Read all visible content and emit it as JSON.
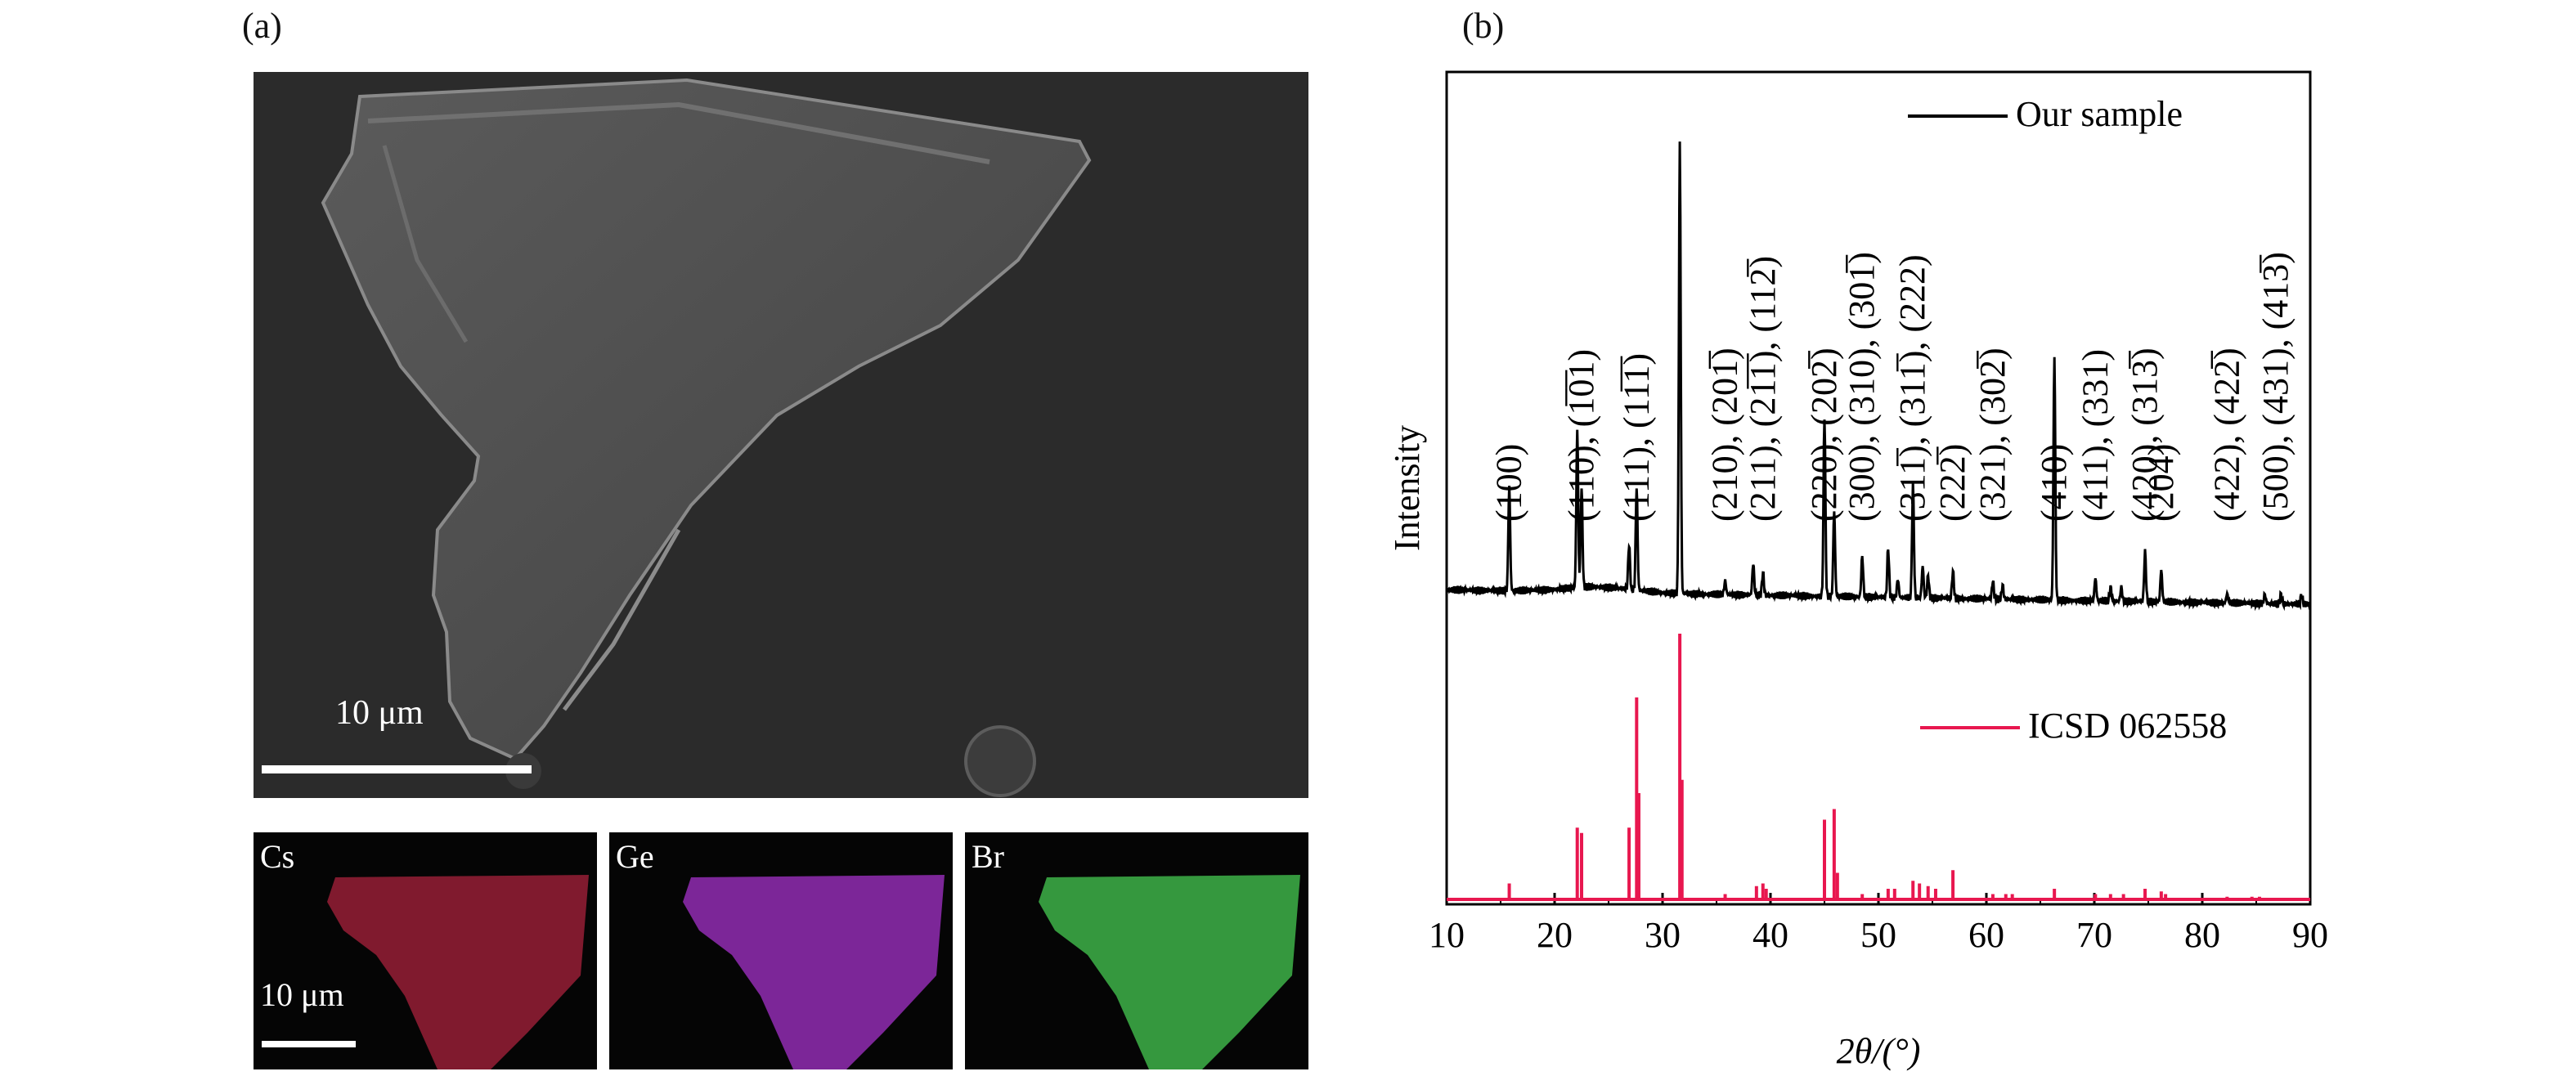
{
  "panels": {
    "a_label": "(a)",
    "b_label": "(b)"
  },
  "sem": {
    "scale_main": "10 μm",
    "scale_map": "10 μm",
    "maps": [
      {
        "element": "Cs",
        "color": "#b0243f"
      },
      {
        "element": "Ge",
        "color": "#a337c6"
      },
      {
        "element": "Br",
        "color": "#3fb648"
      }
    ]
  },
  "chart_data": {
    "type": "line",
    "xlabel": "2θ/(°)",
    "ylabel": "Intensity",
    "xlim": [
      10,
      90
    ],
    "xticks": [
      10,
      20,
      30,
      40,
      50,
      60,
      70,
      80,
      90
    ],
    "legend": [
      {
        "name": "Our sample",
        "color": "#000000",
        "placement": "top"
      },
      {
        "name": "ICSD 062558",
        "color": "#e8174f",
        "placement": "middle"
      }
    ],
    "series": [
      {
        "name": "Our sample",
        "color": "#000000",
        "baseline": 0.07,
        "peaks": [
          {
            "x": 15.8,
            "h": 0.23
          },
          {
            "x": 22.1,
            "h": 0.35
          },
          {
            "x": 22.5,
            "h": 0.22
          },
          {
            "x": 26.9,
            "h": 0.1
          },
          {
            "x": 27.6,
            "h": 0.23
          },
          {
            "x": 31.6,
            "h": 1.0
          },
          {
            "x": 35.8,
            "h": 0.03
          },
          {
            "x": 38.4,
            "h": 0.07
          },
          {
            "x": 39.3,
            "h": 0.05
          },
          {
            "x": 45.0,
            "h": 0.4
          },
          {
            "x": 45.9,
            "h": 0.19
          },
          {
            "x": 48.5,
            "h": 0.09
          },
          {
            "x": 50.9,
            "h": 0.11
          },
          {
            "x": 51.8,
            "h": 0.04
          },
          {
            "x": 53.2,
            "h": 0.25
          },
          {
            "x": 54.1,
            "h": 0.07
          },
          {
            "x": 54.6,
            "h": 0.05
          },
          {
            "x": 56.9,
            "h": 0.06
          },
          {
            "x": 60.6,
            "h": 0.04
          },
          {
            "x": 61.5,
            "h": 0.03
          },
          {
            "x": 66.3,
            "h": 0.54
          },
          {
            "x": 70.1,
            "h": 0.05
          },
          {
            "x": 71.5,
            "h": 0.03
          },
          {
            "x": 72.5,
            "h": 0.03
          },
          {
            "x": 74.7,
            "h": 0.11
          },
          {
            "x": 76.2,
            "h": 0.07
          },
          {
            "x": 82.3,
            "h": 0.02
          },
          {
            "x": 85.8,
            "h": 0.02
          },
          {
            "x": 87.3,
            "h": 0.02
          },
          {
            "x": 89.2,
            "h": 0.02
          }
        ]
      },
      {
        "name": "ICSD 062558",
        "color": "#e8174f",
        "sticks": [
          {
            "x": 15.8,
            "h": 0.06
          },
          {
            "x": 22.1,
            "h": 0.27
          },
          {
            "x": 22.5,
            "h": 0.25
          },
          {
            "x": 26.9,
            "h": 0.27
          },
          {
            "x": 27.6,
            "h": 0.76
          },
          {
            "x": 27.8,
            "h": 0.4
          },
          {
            "x": 31.6,
            "h": 1.0
          },
          {
            "x": 31.8,
            "h": 0.45
          },
          {
            "x": 35.8,
            "h": 0.02
          },
          {
            "x": 38.7,
            "h": 0.05
          },
          {
            "x": 39.3,
            "h": 0.06
          },
          {
            "x": 39.6,
            "h": 0.04
          },
          {
            "x": 45.0,
            "h": 0.3
          },
          {
            "x": 45.9,
            "h": 0.34
          },
          {
            "x": 46.2,
            "h": 0.1
          },
          {
            "x": 48.5,
            "h": 0.02
          },
          {
            "x": 50.9,
            "h": 0.04
          },
          {
            "x": 51.5,
            "h": 0.04
          },
          {
            "x": 53.2,
            "h": 0.07
          },
          {
            "x": 53.8,
            "h": 0.06
          },
          {
            "x": 54.6,
            "h": 0.05
          },
          {
            "x": 55.3,
            "h": 0.04
          },
          {
            "x": 56.9,
            "h": 0.11
          },
          {
            "x": 60.6,
            "h": 0.02
          },
          {
            "x": 61.8,
            "h": 0.02
          },
          {
            "x": 62.4,
            "h": 0.02
          },
          {
            "x": 66.3,
            "h": 0.04
          },
          {
            "x": 70.1,
            "h": 0.02
          },
          {
            "x": 71.5,
            "h": 0.02
          },
          {
            "x": 72.7,
            "h": 0.02
          },
          {
            "x": 74.7,
            "h": 0.04
          },
          {
            "x": 76.2,
            "h": 0.03
          },
          {
            "x": 76.6,
            "h": 0.02
          },
          {
            "x": 82.3,
            "h": 0.01
          },
          {
            "x": 84.6,
            "h": 0.01
          },
          {
            "x": 85.3,
            "h": 0.01
          }
        ]
      }
    ],
    "annotations": [
      {
        "x": 15.8,
        "text": "(100)"
      },
      {
        "x": 22.5,
        "text": "(110), (1̅0̅1)"
      },
      {
        "x": 27.6,
        "text": "(111), (11̅1̅)"
      },
      {
        "x": 35.8,
        "text": "(210), (201̅)"
      },
      {
        "x": 39.3,
        "text": "(211), (21̅1̅), (112̅)"
      },
      {
        "x": 45.0,
        "text": "(220), (202̅)"
      },
      {
        "x": 48.5,
        "text": "(300), (310), (301̅)"
      },
      {
        "x": 53.2,
        "text": "(311̅), (311̅), (222)"
      },
      {
        "x": 56.9,
        "text": "(222̅)"
      },
      {
        "x": 60.6,
        "text": "(321), (302̅)"
      },
      {
        "x": 66.3,
        "text": "(410)"
      },
      {
        "x": 70.1,
        "text": "(411), (331)"
      },
      {
        "x": 74.7,
        "text": "(420), (313̅)"
      },
      {
        "x": 76.2,
        "text": "(204)"
      },
      {
        "x": 82.3,
        "text": "(422), (422̅)"
      },
      {
        "x": 86.8,
        "text": "(500), (431), (413̅)"
      }
    ]
  }
}
